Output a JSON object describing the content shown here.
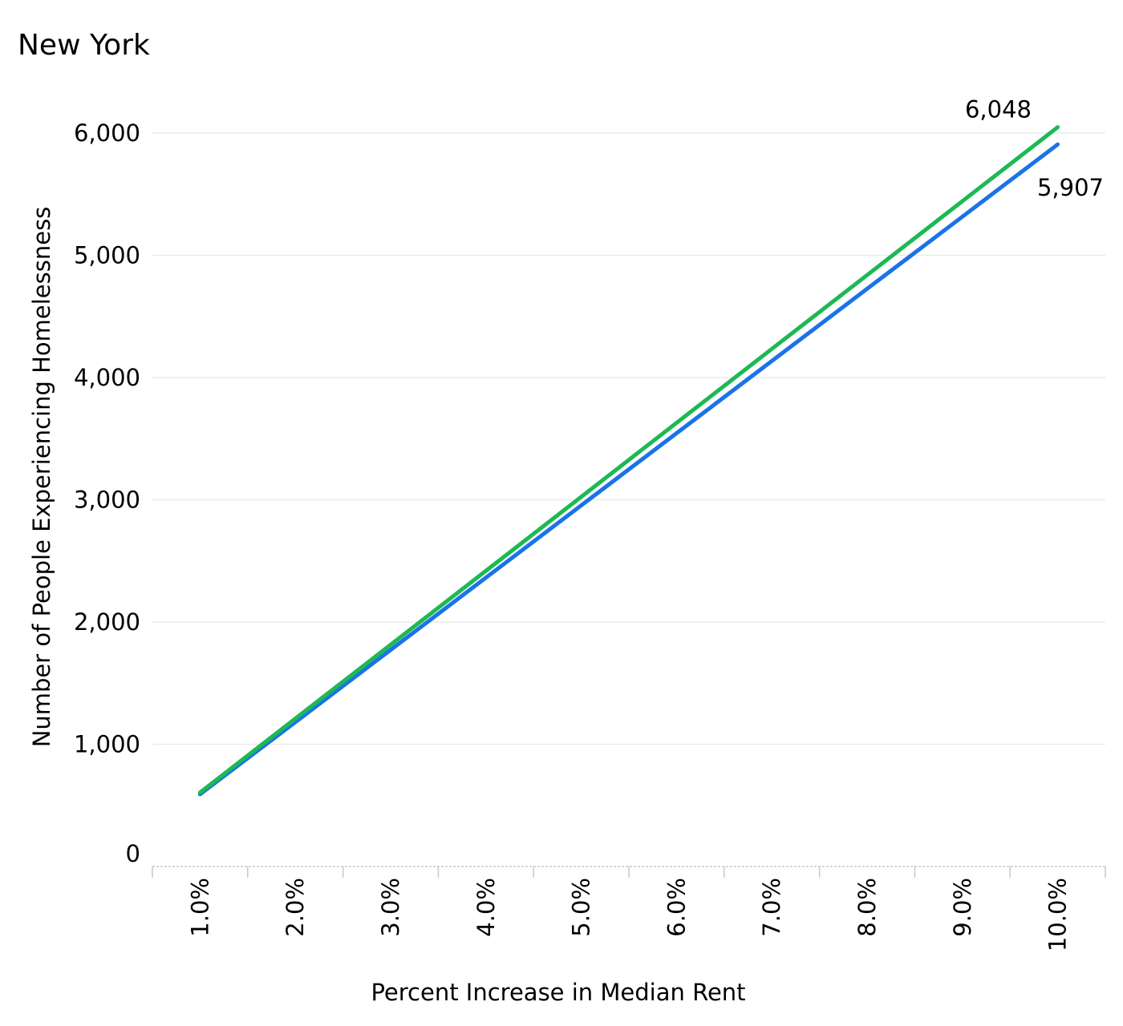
{
  "chart_data": {
    "type": "line",
    "title": "New York",
    "xlabel": "Percent Increase in Median Rent",
    "ylabel": "Number of People Experiencing Homelessness",
    "categories": [
      "1.0%",
      "2.0%",
      "3.0%",
      "4.0%",
      "5.0%",
      "6.0%",
      "7.0%",
      "8.0%",
      "9.0%",
      "10.0%"
    ],
    "y_ticks": [
      "0",
      "1,000",
      "2,000",
      "3,000",
      "4,000",
      "5,000",
      "6,000"
    ],
    "ylim": [
      0,
      6000
    ],
    "grid": true,
    "series": [
      {
        "color": "#1a73e8",
        "end_label": "5,907",
        "values": [
          591,
          1181,
          1772,
          2363,
          2954,
          3544,
          4135,
          4726,
          5316,
          5907
        ]
      },
      {
        "color": "#1db954",
        "end_label": "6,048",
        "values": [
          605,
          1210,
          1814,
          2419,
          3024,
          3629,
          4234,
          4838,
          5443,
          6048
        ]
      }
    ]
  }
}
